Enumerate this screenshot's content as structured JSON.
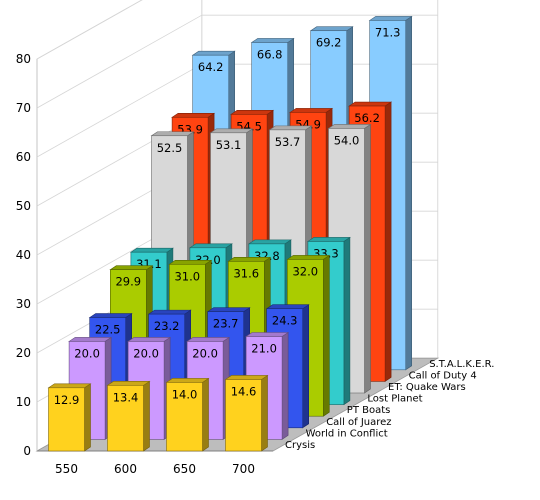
{
  "chart_data": {
    "type": "bar",
    "categories": [
      "550",
      "600",
      "650",
      "700"
    ],
    "series": [
      {
        "name": "Crysis",
        "values": [
          12.9,
          13.4,
          14.0,
          14.6
        ],
        "color": "#ffd21e"
      },
      {
        "name": "World in Conflict",
        "values": [
          20.0,
          20.0,
          20.0,
          21.0
        ],
        "color": "#cc99ff"
      },
      {
        "name": "Call of Juarez",
        "values": [
          22.5,
          23.2,
          23.7,
          24.3
        ],
        "color": "#3355ee"
      },
      {
        "name": "PT Boats",
        "values": [
          29.9,
          31.0,
          31.6,
          32.0
        ],
        "color": "#aacc00"
      },
      {
        "name": "Lost Planet",
        "values": [
          31.1,
          32.0,
          32.8,
          33.3
        ],
        "color": "#33cccc"
      },
      {
        "name": "ET: Quake Wars",
        "values": [
          52.5,
          53.1,
          53.7,
          54.0
        ],
        "color": "#d8d8d8"
      },
      {
        "name": "Call of Duty 4",
        "values": [
          53.9,
          54.5,
          54.9,
          56.2
        ],
        "color": "#ff4411"
      },
      {
        "name": "S.T.A.L.K.E.R.",
        "values": [
          64.2,
          66.8,
          69.2,
          71.3
        ],
        "color": "#88ccff"
      }
    ],
    "y_ticks": [
      0,
      10,
      20,
      30,
      40,
      50,
      60,
      70,
      80
    ],
    "ylim": [
      0,
      80
    ],
    "grid": true,
    "legend": "series labels on depth axis (right)"
  }
}
